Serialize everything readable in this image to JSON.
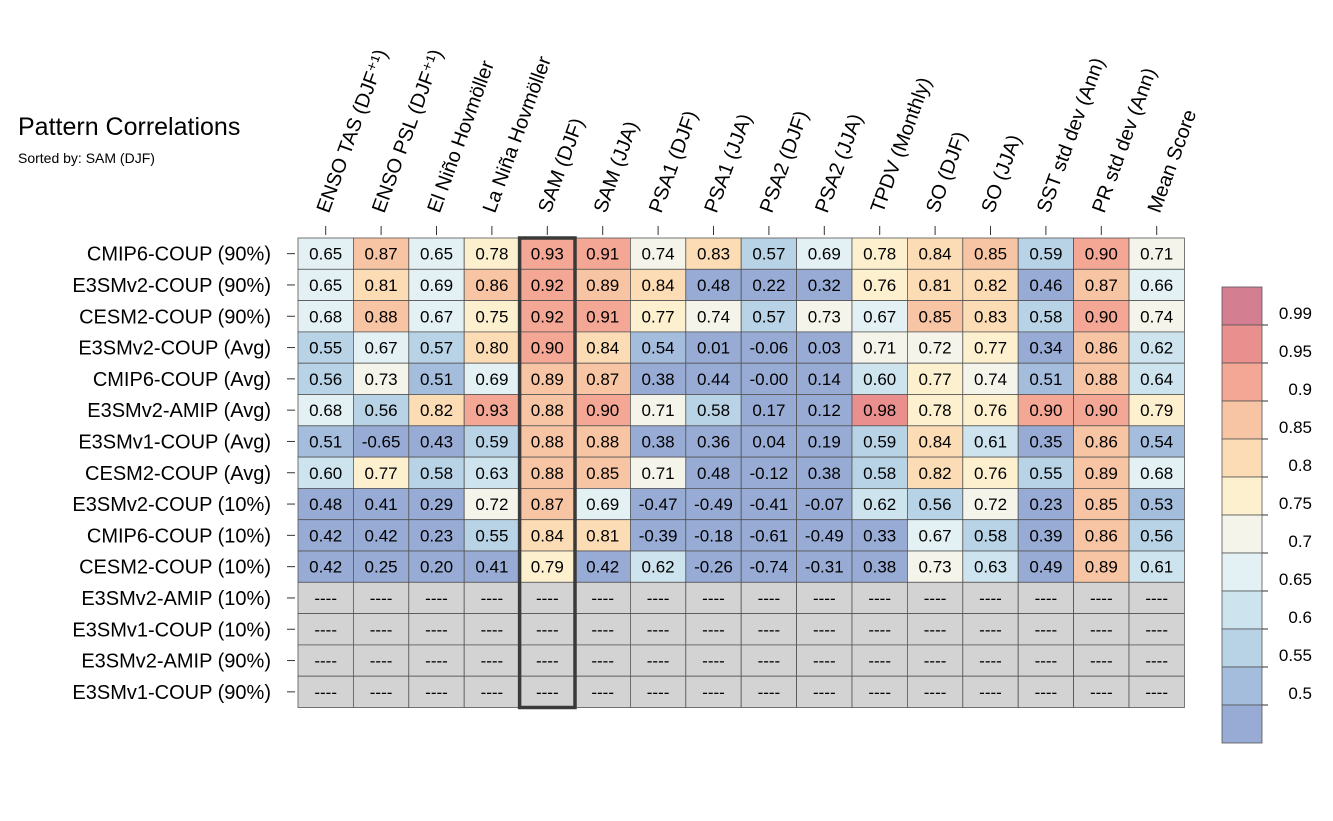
{
  "chart_data": {
    "type": "heatmap",
    "title": "Pattern Correlations",
    "subtitle": "Sorted by: SAM (DJF)",
    "highlight_column": "SAM (DJF)",
    "columns": [
      "ENSO TAS (DJF⁺¹)",
      "ENSO PSL (DJF⁺¹)",
      "El Niño Hovmöller",
      "La Niña Hovmöller",
      "SAM (DJF)",
      "SAM (JJA)",
      "PSA1 (DJF)",
      "PSA1 (JJA)",
      "PSA2 (DJF)",
      "PSA2 (JJA)",
      "TPDV (Monthly)",
      "SO (DJF)",
      "SO (JJA)",
      "SST std dev (Ann)",
      "PR std dev (Ann)",
      "Mean Score"
    ],
    "rows": [
      "CMIP6-COUP (90%)",
      "E3SMv2-COUP (90%)",
      "CESM2-COUP (90%)",
      "E3SMv2-COUP (Avg)",
      "CMIP6-COUP (Avg)",
      "E3SMv2-AMIP (Avg)",
      "E3SMv1-COUP (Avg)",
      "CESM2-COUP (Avg)",
      "E3SMv2-COUP (10%)",
      "CMIP6-COUP (10%)",
      "CESM2-COUP (10%)",
      "E3SMv2-AMIP (10%)",
      "E3SMv1-COUP (10%)",
      "E3SMv2-AMIP (90%)",
      "E3SMv1-COUP (90%)"
    ],
    "values": [
      [
        "0.65",
        "0.87",
        "0.65",
        "0.78",
        "0.93",
        "0.91",
        "0.74",
        "0.83",
        "0.57",
        "0.69",
        "0.78",
        "0.84",
        "0.85",
        "0.59",
        "0.90",
        "0.71"
      ],
      [
        "0.65",
        "0.81",
        "0.69",
        "0.86",
        "0.92",
        "0.89",
        "0.84",
        "0.48",
        "0.22",
        "0.32",
        "0.76",
        "0.81",
        "0.82",
        "0.46",
        "0.87",
        "0.66"
      ],
      [
        "0.68",
        "0.88",
        "0.67",
        "0.75",
        "0.92",
        "0.91",
        "0.77",
        "0.74",
        "0.57",
        "0.73",
        "0.67",
        "0.85",
        "0.83",
        "0.58",
        "0.90",
        "0.74"
      ],
      [
        "0.55",
        "0.67",
        "0.57",
        "0.80",
        "0.90",
        "0.84",
        "0.54",
        "0.01",
        "-0.06",
        "0.03",
        "0.71",
        "0.72",
        "0.77",
        "0.34",
        "0.86",
        "0.62"
      ],
      [
        "0.56",
        "0.73",
        "0.51",
        "0.69",
        "0.89",
        "0.87",
        "0.38",
        "0.44",
        "-0.00",
        "0.14",
        "0.60",
        "0.77",
        "0.74",
        "0.51",
        "0.88",
        "0.64"
      ],
      [
        "0.68",
        "0.56",
        "0.82",
        "0.93",
        "0.88",
        "0.90",
        "0.71",
        "0.58",
        "0.17",
        "0.12",
        "0.98",
        "0.78",
        "0.76",
        "0.90",
        "0.90",
        "0.79"
      ],
      [
        "0.51",
        "-0.65",
        "0.43",
        "0.59",
        "0.88",
        "0.88",
        "0.38",
        "0.36",
        "0.04",
        "0.19",
        "0.59",
        "0.84",
        "0.61",
        "0.35",
        "0.86",
        "0.54"
      ],
      [
        "0.60",
        "0.77",
        "0.58",
        "0.63",
        "0.88",
        "0.85",
        "0.71",
        "0.48",
        "-0.12",
        "0.38",
        "0.58",
        "0.82",
        "0.76",
        "0.55",
        "0.89",
        "0.68"
      ],
      [
        "0.48",
        "0.41",
        "0.29",
        "0.72",
        "0.87",
        "0.69",
        "-0.47",
        "-0.49",
        "-0.41",
        "-0.07",
        "0.62",
        "0.56",
        "0.72",
        "0.23",
        "0.85",
        "0.53"
      ],
      [
        "0.42",
        "0.42",
        "0.23",
        "0.55",
        "0.84",
        "0.81",
        "-0.39",
        "-0.18",
        "-0.61",
        "-0.49",
        "0.33",
        "0.67",
        "0.58",
        "0.39",
        "0.86",
        "0.56"
      ],
      [
        "0.42",
        "0.25",
        "0.20",
        "0.41",
        "0.79",
        "0.42",
        "0.62",
        "-0.26",
        "-0.74",
        "-0.31",
        "0.38",
        "0.73",
        "0.63",
        "0.49",
        "0.89",
        "0.61"
      ],
      [
        "----",
        "----",
        "----",
        "----",
        "----",
        "----",
        "----",
        "----",
        "----",
        "----",
        "----",
        "----",
        "----",
        "----",
        "----",
        "----"
      ],
      [
        "----",
        "----",
        "----",
        "----",
        "----",
        "----",
        "----",
        "----",
        "----",
        "----",
        "----",
        "----",
        "----",
        "----",
        "----",
        "----"
      ],
      [
        "----",
        "----",
        "----",
        "----",
        "----",
        "----",
        "----",
        "----",
        "----",
        "----",
        "----",
        "----",
        "----",
        "----",
        "----",
        "----"
      ],
      [
        "----",
        "----",
        "----",
        "----",
        "----",
        "----",
        "----",
        "----",
        "----",
        "----",
        "----",
        "----",
        "----",
        "----",
        "----",
        "----"
      ]
    ],
    "missing_value": "----",
    "missing_color": "#d3d3d3",
    "colorbar": {
      "tick_labels": [
        "0.99",
        "0.95",
        "0.9",
        "0.85",
        "0.8",
        "0.75",
        "0.7",
        "0.65",
        "0.6",
        "0.55",
        "0.5"
      ],
      "bins": [
        {
          "min": 0.99,
          "color": "#d47f91"
        },
        {
          "min": 0.95,
          "color": "#e98f8d"
        },
        {
          "min": 0.9,
          "color": "#f3a794"
        },
        {
          "min": 0.85,
          "color": "#f7c5a3"
        },
        {
          "min": 0.8,
          "color": "#fbdcb5"
        },
        {
          "min": 0.75,
          "color": "#fdf0cf"
        },
        {
          "min": 0.7,
          "color": "#f4f4eb"
        },
        {
          "min": 0.65,
          "color": "#e3f0f4"
        },
        {
          "min": 0.6,
          "color": "#cde3ee"
        },
        {
          "min": 0.55,
          "color": "#b8d3e6"
        },
        {
          "min": 0.5,
          "color": "#a4bddd"
        },
        {
          "min": -1.0,
          "color": "#97abd4"
        }
      ]
    }
  }
}
